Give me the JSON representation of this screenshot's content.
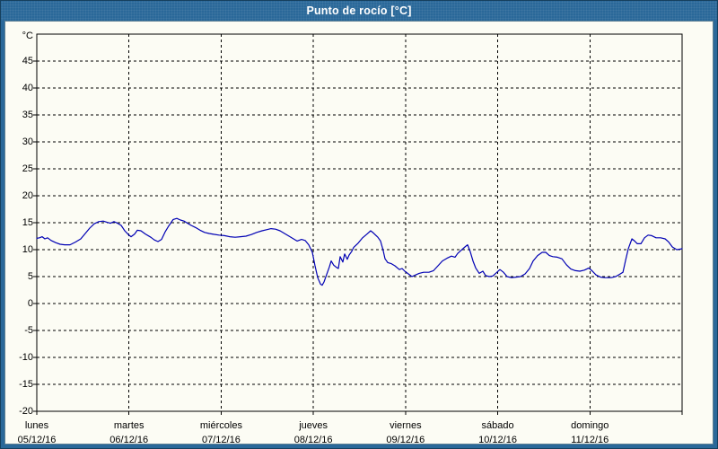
{
  "window": {
    "title": "Punto de rocío [°C]"
  },
  "colors": {
    "frame": "#2a6899",
    "frame_dark": "#16405e",
    "panel_bg": "#fcfcf4",
    "grid": "#000000",
    "line": "#0000b4",
    "title_text": "#ffffff",
    "label_text": "#000000"
  },
  "chart_data": {
    "type": "line",
    "title": "Punto de rocío [°C]",
    "legend": "none",
    "grid": "dashed",
    "y_axis": {
      "unit": "°C",
      "min": -20,
      "max": 50,
      "tick_step": 5,
      "tick_values": [
        45,
        40,
        35,
        30,
        25,
        20,
        15,
        10,
        5,
        0,
        -5,
        -10,
        -15,
        -20
      ]
    },
    "x_axis": {
      "range_days": [
        0,
        7
      ],
      "days": [
        {
          "name": "lunes",
          "date": "05/12/16"
        },
        {
          "name": "martes",
          "date": "06/12/16"
        },
        {
          "name": "miércoles",
          "date": "07/12/16"
        },
        {
          "name": "jueves",
          "date": "08/12/16"
        },
        {
          "name": "viernes",
          "date": "09/12/16"
        },
        {
          "name": "sábado",
          "date": "10/12/16"
        },
        {
          "name": "domingo",
          "date": "11/12/16"
        }
      ]
    },
    "series_name": "Punto de rocío",
    "points": [
      [
        0.0,
        12.1
      ],
      [
        0.029,
        12.2
      ],
      [
        0.058,
        12.4
      ],
      [
        0.088,
        12.0
      ],
      [
        0.117,
        12.2
      ],
      [
        0.156,
        11.7
      ],
      [
        0.204,
        11.3
      ],
      [
        0.253,
        11.0
      ],
      [
        0.302,
        10.9
      ],
      [
        0.36,
        10.9
      ],
      [
        0.419,
        11.4
      ],
      [
        0.477,
        12.0
      ],
      [
        0.526,
        13.0
      ],
      [
        0.574,
        14.0
      ],
      [
        0.623,
        14.8
      ],
      [
        0.672,
        15.2
      ],
      [
        0.72,
        15.3
      ],
      [
        0.759,
        15.1
      ],
      [
        0.798,
        14.9
      ],
      [
        0.837,
        15.2
      ],
      [
        0.876,
        14.9
      ],
      [
        0.915,
        14.5
      ],
      [
        0.954,
        13.5
      ],
      [
        0.993,
        12.8
      ],
      [
        1.022,
        12.4
      ],
      [
        1.061,
        12.9
      ],
      [
        1.09,
        13.6
      ],
      [
        1.129,
        13.5
      ],
      [
        1.178,
        12.9
      ],
      [
        1.236,
        12.3
      ],
      [
        1.275,
        11.8
      ],
      [
        1.314,
        11.5
      ],
      [
        1.353,
        11.9
      ],
      [
        1.392,
        13.3
      ],
      [
        1.431,
        14.4
      ],
      [
        1.48,
        15.6
      ],
      [
        1.519,
        15.8
      ],
      [
        1.558,
        15.5
      ],
      [
        1.597,
        15.3
      ],
      [
        1.636,
        14.9
      ],
      [
        1.675,
        14.5
      ],
      [
        1.723,
        14.1
      ],
      [
        1.772,
        13.6
      ],
      [
        1.821,
        13.2
      ],
      [
        1.869,
        13.0
      ],
      [
        1.918,
        12.85
      ],
      [
        1.976,
        12.7
      ],
      [
        2.035,
        12.6
      ],
      [
        2.093,
        12.4
      ],
      [
        2.152,
        12.3
      ],
      [
        2.21,
        12.4
      ],
      [
        2.268,
        12.5
      ],
      [
        2.327,
        12.8
      ],
      [
        2.385,
        13.2
      ],
      [
        2.444,
        13.5
      ],
      [
        2.492,
        13.7
      ],
      [
        2.541,
        13.9
      ],
      [
        2.59,
        13.8
      ],
      [
        2.638,
        13.5
      ],
      [
        2.687,
        13.0
      ],
      [
        2.726,
        12.6
      ],
      [
        2.775,
        12.1
      ],
      [
        2.823,
        11.6
      ],
      [
        2.872,
        11.9
      ],
      [
        2.911,
        11.7
      ],
      [
        2.95,
        10.9
      ],
      [
        2.989,
        9.5
      ],
      [
        3.018,
        7.0
      ],
      [
        3.047,
        4.8
      ],
      [
        3.077,
        3.6
      ],
      [
        3.096,
        3.4
      ],
      [
        3.115,
        4.0
      ],
      [
        3.145,
        5.4
      ],
      [
        3.174,
        6.8
      ],
      [
        3.193,
        7.9
      ],
      [
        3.222,
        7.1
      ],
      [
        3.252,
        6.7
      ],
      [
        3.271,
        6.5
      ],
      [
        3.291,
        8.7
      ],
      [
        3.32,
        7.7
      ],
      [
        3.339,
        9.2
      ],
      [
        3.368,
        8.2
      ],
      [
        3.388,
        9.0
      ],
      [
        3.417,
        9.7
      ],
      [
        3.437,
        10.4
      ],
      [
        3.485,
        11.2
      ],
      [
        3.534,
        12.2
      ],
      [
        3.583,
        12.9
      ],
      [
        3.622,
        13.5
      ],
      [
        3.651,
        13.1
      ],
      [
        3.7,
        12.3
      ],
      [
        3.729,
        11.6
      ],
      [
        3.758,
        9.8
      ],
      [
        3.777,
        8.3
      ],
      [
        3.807,
        7.6
      ],
      [
        3.846,
        7.4
      ],
      [
        3.885,
        7.0
      ],
      [
        3.933,
        6.3
      ],
      [
        3.962,
        6.5
      ],
      [
        3.992,
        6.0
      ],
      [
        4.031,
        5.5
      ],
      [
        4.07,
        5.0
      ],
      [
        4.108,
        5.3
      ],
      [
        4.147,
        5.6
      ],
      [
        4.196,
        5.8
      ],
      [
        4.254,
        5.8
      ],
      [
        4.303,
        6.1
      ],
      [
        4.352,
        7.0
      ],
      [
        4.4,
        7.9
      ],
      [
        4.449,
        8.4
      ],
      [
        4.498,
        8.8
      ],
      [
        4.537,
        8.6
      ],
      [
        4.566,
        9.3
      ],
      [
        4.605,
        9.9
      ],
      [
        4.644,
        10.5
      ],
      [
        4.673,
        10.9
      ],
      [
        4.702,
        9.6
      ],
      [
        4.732,
        7.9
      ],
      [
        4.761,
        6.6
      ],
      [
        4.8,
        5.6
      ],
      [
        4.839,
        6.0
      ],
      [
        4.868,
        5.2
      ],
      [
        4.907,
        5.0
      ],
      [
        4.946,
        5.1
      ],
      [
        4.985,
        5.7
      ],
      [
        5.024,
        6.3
      ],
      [
        5.063,
        5.8
      ],
      [
        5.102,
        5.0
      ],
      [
        5.15,
        4.8
      ],
      [
        5.199,
        4.9
      ],
      [
        5.248,
        5.0
      ],
      [
        5.297,
        5.5
      ],
      [
        5.345,
        6.5
      ],
      [
        5.384,
        7.9
      ],
      [
        5.433,
        8.9
      ],
      [
        5.482,
        9.5
      ],
      [
        5.521,
        9.5
      ],
      [
        5.56,
        8.9
      ],
      [
        5.598,
        8.7
      ],
      [
        5.647,
        8.6
      ],
      [
        5.696,
        8.3
      ],
      [
        5.745,
        7.2
      ],
      [
        5.793,
        6.4
      ],
      [
        5.842,
        6.1
      ],
      [
        5.891,
        6.0
      ],
      [
        5.94,
        6.2
      ],
      [
        5.988,
        6.6
      ],
      [
        6.027,
        6.0
      ],
      [
        6.066,
        5.3
      ],
      [
        6.115,
        4.9
      ],
      [
        6.163,
        4.8
      ],
      [
        6.231,
        4.8
      ],
      [
        6.28,
        5.0
      ],
      [
        6.319,
        5.4
      ],
      [
        6.358,
        5.8
      ],
      [
        6.387,
        8.0
      ],
      [
        6.417,
        10.2
      ],
      [
        6.456,
        12.0
      ],
      [
        6.485,
        11.6
      ],
      [
        6.514,
        11.1
      ],
      [
        6.553,
        11.1
      ],
      [
        6.592,
        12.2
      ],
      [
        6.631,
        12.7
      ],
      [
        6.67,
        12.6
      ],
      [
        6.718,
        12.2
      ],
      [
        6.767,
        12.2
      ],
      [
        6.816,
        12.0
      ],
      [
        6.855,
        11.4
      ],
      [
        6.894,
        10.5
      ],
      [
        6.942,
        10.0
      ],
      [
        6.981,
        10.1
      ],
      [
        7.0,
        10.2
      ]
    ]
  }
}
